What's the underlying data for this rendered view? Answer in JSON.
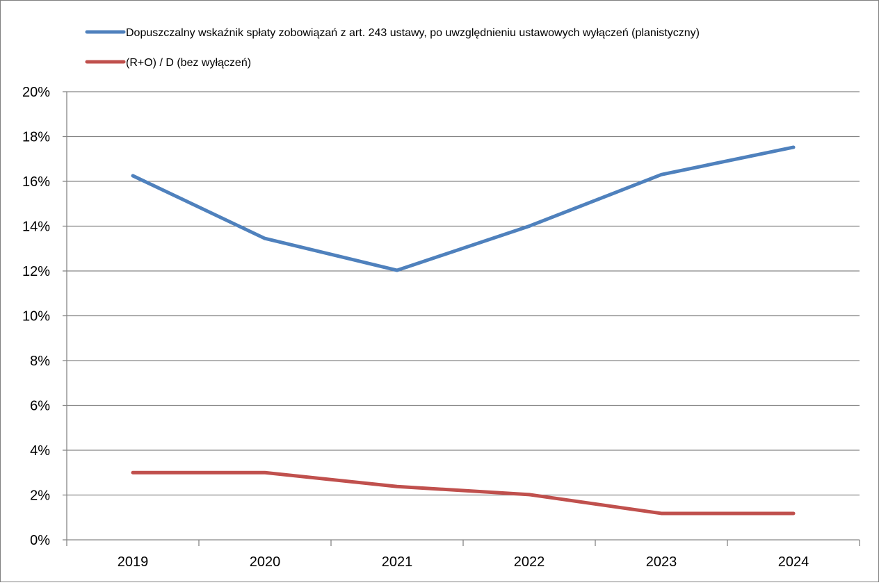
{
  "chart_data": {
    "type": "line",
    "title": "",
    "xlabel": "",
    "ylabel": "",
    "categories": [
      "2019",
      "2020",
      "2021",
      "2022",
      "2023",
      "2024"
    ],
    "ylim": [
      0,
      0.2
    ],
    "y_tick_values": [
      0,
      0.02,
      0.04,
      0.06,
      0.08,
      0.1,
      0.12,
      0.14,
      0.16,
      0.18,
      0.2
    ],
    "y_tick_labels": [
      "0%",
      "2%",
      "4%",
      "6%",
      "8%",
      "10%",
      "12%",
      "14%",
      "16%",
      "18%",
      "20%"
    ],
    "grid": true,
    "legend_position": "top",
    "series": [
      {
        "name": "Dopuszczalny wskaźnik spłaty zobowiązań z art. 243 ustawy, po uwzględnieniu ustawowych wyłączeń (planistyczny)",
        "color": "#4f81bd",
        "values": [
          0.1625,
          0.1345,
          0.1203,
          0.14,
          0.163,
          0.1752
        ]
      },
      {
        "name": "(R+O) / D (bez wyłączeń)",
        "color": "#c0504d",
        "values": [
          0.03,
          0.03,
          0.0238,
          0.0202,
          0.0118,
          0.0118
        ]
      }
    ]
  }
}
